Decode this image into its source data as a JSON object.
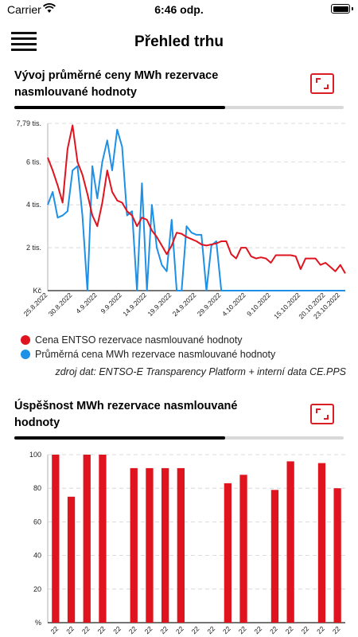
{
  "status_bar": {
    "carrier": "Carrier",
    "time": "6:46 odp."
  },
  "nav": {
    "title": "Přehled trhu"
  },
  "section1": {
    "title": "Vývoj průměrné ceny MWh rezervace nasmlouvané hodnoty",
    "progress": 0.64,
    "source": "zdroj dat: ENTSO-E Transparency Platform + interní data CE.PPS",
    "chart_data": {
      "type": "line",
      "y_tick_labels": [
        "Kč",
        "2 tis.",
        "4 tis.",
        "6 tis.",
        "7,79 tis."
      ],
      "y_ticks": [
        0,
        2000,
        4000,
        6000,
        7790
      ],
      "ylim": [
        0,
        7790
      ],
      "x_tick_labels": [
        "25.8.2022",
        "30.8.2022",
        "4.9.2022",
        "9.9.2022",
        "14.9.2022",
        "19.9.2022",
        "24.9.2022",
        "29.9.2022",
        "4.10.2022",
        "9.10.2022",
        "15.10.2022",
        "20.10.2022",
        "23.10.2022"
      ],
      "x_tick_dates": [
        "2022-08-25",
        "2022-08-30",
        "2022-09-04",
        "2022-09-09",
        "2022-09-14",
        "2022-09-19",
        "2022-09-24",
        "2022-09-29",
        "2022-10-04",
        "2022-10-09",
        "2022-10-15",
        "2022-10-20",
        "2022-10-23"
      ],
      "xlim": [
        "2022-08-25",
        "2022-10-24"
      ],
      "grid": true,
      "legend_position": "bottom",
      "series": [
        {
          "name": "Cena ENTSO rezervace nasmlouvané hodnoty",
          "color": "#e0141e",
          "x": [
            "2022-08-25",
            "2022-08-26",
            "2022-08-27",
            "2022-08-28",
            "2022-08-29",
            "2022-08-30",
            "2022-08-31",
            "2022-09-01",
            "2022-09-02",
            "2022-09-03",
            "2022-09-04",
            "2022-09-05",
            "2022-09-06",
            "2022-09-07",
            "2022-09-08",
            "2022-09-09",
            "2022-09-10",
            "2022-09-11",
            "2022-09-12",
            "2022-09-13",
            "2022-09-14",
            "2022-09-15",
            "2022-09-16",
            "2022-09-17",
            "2022-09-18",
            "2022-09-19",
            "2022-09-20",
            "2022-09-21",
            "2022-09-22",
            "2022-09-23",
            "2022-09-24",
            "2022-09-25",
            "2022-09-26",
            "2022-09-27",
            "2022-09-28",
            "2022-09-29",
            "2022-09-30",
            "2022-10-01",
            "2022-10-02",
            "2022-10-03",
            "2022-10-04",
            "2022-10-05",
            "2022-10-06",
            "2022-10-07",
            "2022-10-08",
            "2022-10-09",
            "2022-10-10",
            "2022-10-11",
            "2022-10-12",
            "2022-10-13",
            "2022-10-14",
            "2022-10-15",
            "2022-10-16",
            "2022-10-17",
            "2022-10-18",
            "2022-10-19",
            "2022-10-20",
            "2022-10-21",
            "2022-10-22",
            "2022-10-23",
            "2022-10-24"
          ],
          "values": [
            6200,
            5600,
            4900,
            4100,
            6600,
            7700,
            6000,
            5400,
            4500,
            3500,
            3000,
            4100,
            5600,
            4600,
            4200,
            4100,
            3700,
            3500,
            3000,
            3400,
            3300,
            2800,
            2500,
            2100,
            1700,
            2100,
            2700,
            2650,
            2500,
            2400,
            2300,
            2150,
            2100,
            2150,
            2200,
            2300,
            2300,
            1700,
            1500,
            2000,
            2000,
            1600,
            1500,
            1550,
            1500,
            1300,
            1650,
            1650,
            1650,
            1650,
            1600,
            1000,
            1500,
            1500,
            1500,
            1200,
            1300,
            1100,
            900,
            1200,
            800
          ]
        },
        {
          "name": "Průměrná cena MWh rezervace nasmlouvané hodnoty",
          "color": "#1e90e6",
          "x": [
            "2022-08-25",
            "2022-08-26",
            "2022-08-27",
            "2022-08-28",
            "2022-08-29",
            "2022-08-30",
            "2022-08-31",
            "2022-09-01",
            "2022-09-02",
            "2022-09-03",
            "2022-09-04",
            "2022-09-05",
            "2022-09-06",
            "2022-09-07",
            "2022-09-08",
            "2022-09-09",
            "2022-09-10",
            "2022-09-11",
            "2022-09-12",
            "2022-09-13",
            "2022-09-14",
            "2022-09-15",
            "2022-09-16",
            "2022-09-17",
            "2022-09-18",
            "2022-09-19",
            "2022-09-20",
            "2022-09-21",
            "2022-09-22",
            "2022-09-23",
            "2022-09-24",
            "2022-09-25",
            "2022-09-26",
            "2022-09-27",
            "2022-09-28",
            "2022-09-29",
            "2022-09-30",
            "2022-10-24"
          ],
          "values": [
            4000,
            4600,
            3400,
            3500,
            3700,
            5600,
            5800,
            3500,
            0,
            5800,
            4300,
            6000,
            7000,
            5600,
            7500,
            6700,
            3500,
            3700,
            0,
            5000,
            0,
            4000,
            2000,
            1200,
            900,
            3300,
            0,
            0,
            3000,
            2700,
            2600,
            2600,
            0,
            2100,
            2300,
            0,
            0,
            0
          ]
        }
      ]
    }
  },
  "section2": {
    "title": "Úspěšnost MWh rezervace nasmlouvané hodnoty",
    "progress": 0.64,
    "chart_data": {
      "type": "bar",
      "y_tick_labels": [
        "%",
        "20",
        "40",
        "60",
        "80",
        "100"
      ],
      "y_ticks": [
        0,
        20,
        40,
        60,
        80,
        100
      ],
      "ylim": [
        0,
        100
      ],
      "grid": true,
      "color": "#e0141e",
      "values": [
        100,
        75,
        100,
        100,
        null,
        92,
        92,
        92,
        92,
        null,
        null,
        83,
        88,
        null,
        79,
        96,
        null,
        95,
        80
      ],
      "x_tick_labels": [
        "22",
        "22",
        "22",
        "22",
        "22",
        "22",
        "22",
        "22",
        "22",
        "22",
        "22",
        "22",
        "22",
        "22",
        "22",
        "22",
        "22",
        "22",
        "22"
      ]
    }
  }
}
